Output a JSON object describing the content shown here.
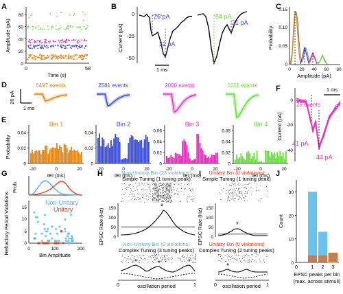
{
  "colors": {
    "bin1": "#e08a1e",
    "bin2": "#3d4fd6",
    "bin3": "#e830c0",
    "bin4": "#66e03a",
    "nonunitary": "#4fb8ea",
    "unitary": "#d9472b",
    "gray": "#b0b0b0"
  },
  "panels": {
    "A": {
      "label": "A",
      "ylabel": "Amplitude (pA)",
      "xlabel": "Time (s)",
      "yticks": [
        "0",
        "20",
        "40",
        "60",
        "80"
      ],
      "xticks": [
        "0",
        "58"
      ]
    },
    "B": {
      "label": "B",
      "ylabel": "Current (pA)",
      "yticks": [
        "0",
        "-25",
        "-50"
      ],
      "annots": [
        "26 pA",
        "32 pA",
        "64 pA",
        "21 pA"
      ],
      "scale": "1 ms"
    },
    "C": {
      "label": "C",
      "ylabel": "Probability",
      "xlabel": "Amplitude (pA)",
      "yticks": [
        "0",
        "0.05",
        "0.10",
        "0.15"
      ],
      "xticks": [
        "0",
        "20",
        "40",
        "60",
        "80"
      ]
    },
    "D": {
      "label": "D",
      "counts": [
        "6497 events",
        "2581 events",
        "2000 events",
        "1011 events"
      ],
      "scale_y": "20 pA",
      "scale_x": "1 ms"
    },
    "E": {
      "label": "E",
      "ylabel": "Probability",
      "xlabel": "IEI (ms)",
      "bins": [
        "Bin 1",
        "Bin 2",
        "Bin 3",
        "Bin 4"
      ],
      "yticks": [
        [
          "0",
          "0.02",
          "0.04"
        ],
        [
          "0",
          "0.02",
          "0.04"
        ],
        [
          "0",
          "0.02",
          "0.04",
          "0.06"
        ],
        [
          "0",
          "0.02",
          "0.04",
          "0.06"
        ]
      ],
      "xticks": [
        "-20",
        "0",
        "20"
      ]
    },
    "F": {
      "label": "F",
      "ylabel": "Current (pA)",
      "yticks": [
        "0",
        "-20",
        "-40"
      ],
      "count": "29 events",
      "annots": [
        "41 pA",
        "44 pA"
      ],
      "scale": "1 ms"
    },
    "G": {
      "label": "G",
      "ylabel_top": "Prob.",
      "ylabel": "Refractory Period Violations",
      "xlabel": "Bin Amplitude",
      "legend": [
        "Non-Unitary",
        "Unitary"
      ],
      "yticks": [
        "0",
        "5",
        "10",
        "15"
      ],
      "xticks": [
        "0",
        "100",
        "200"
      ]
    },
    "H": {
      "label": "H",
      "title1": "Non-Unitary Bin (23 violations)",
      "sub1": "Simple Tuning (1 tuning peak)",
      "title2": "Non-Unitary Bin (9 violations)",
      "sub2": "Complex Tuning (3 tuning peaks)",
      "ylabel": "EPSC Rate (Hz)",
      "yticks": [
        "0",
        "50",
        "100",
        "150"
      ],
      "xlabel": "oscillation period",
      "xticks": [
        "0",
        "1"
      ]
    },
    "I": {
      "label": "I",
      "title1": "Unitary Bin (0 violations)",
      "sub1": "Simple Tuning (1 tuning peak)",
      "title2": "Unitary Bin (0 violations)",
      "sub2": "Complex Tuning (2 tuning peaks)",
      "ylabel": "EPSC Rate (Hz)",
      "yticks": [
        "0",
        "50",
        "100",
        "150"
      ],
      "xlabel": "oscillation period",
      "xticks": [
        "0",
        "1"
      ]
    },
    "J": {
      "label": "J",
      "ylabel": "Count",
      "xlabel": "EPSC peaks per bin",
      "xlabel2": "(max. across stimuli)",
      "yticks": [
        "0",
        "10",
        "20",
        "30"
      ],
      "xticks": [
        "0",
        "1",
        "2",
        "3"
      ]
    }
  },
  "chart_data": {
    "type": "bar",
    "title": "",
    "xlabel": "EPSC peaks per bin (max. across stimuli)",
    "ylabel": "Count",
    "categories": [
      "0",
      "1",
      "2",
      "3"
    ],
    "ylim": [
      0,
      35
    ],
    "series": [
      {
        "values": [
          0,
          30,
          13,
          4
        ]
      },
      {
        "values": [
          0,
          3,
          3,
          4
        ]
      }
    ]
  }
}
